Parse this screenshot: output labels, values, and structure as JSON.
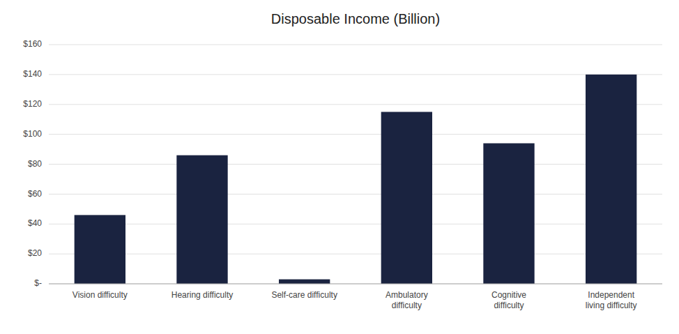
{
  "chart_data": {
    "type": "bar",
    "title": "Disposable Income (Billion)",
    "categories": [
      "Vision difficulty",
      "Hearing difficulty",
      "Self-care difficulty",
      "Ambulatory\ndifficulty",
      "Cognitive\ndifficulty",
      "Independent\nliving difficulty"
    ],
    "values": [
      46,
      86,
      3,
      115,
      94,
      140
    ],
    "color": "#1a2340",
    "ylim": [
      0,
      160
    ],
    "yticks": [
      {
        "value": 0,
        "label": "$-"
      },
      {
        "value": 20,
        "label": "$20"
      },
      {
        "value": 40,
        "label": "$40"
      },
      {
        "value": 60,
        "label": "$60"
      },
      {
        "value": 80,
        "label": "$80"
      },
      {
        "value": 100,
        "label": "$100"
      },
      {
        "value": 120,
        "label": "$120"
      },
      {
        "value": 140,
        "label": "$140"
      },
      {
        "value": 160,
        "label": "$160"
      }
    ],
    "grid": true
  }
}
